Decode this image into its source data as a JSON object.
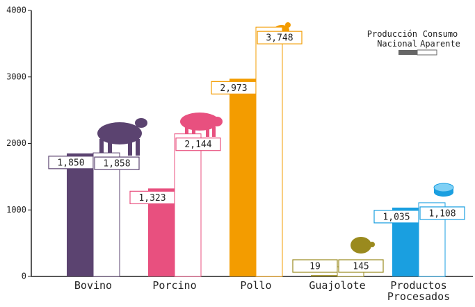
{
  "chart_data": {
    "type": "bar",
    "categories": [
      "Bovino",
      "Porcino",
      "Pollo",
      "Guajolote",
      "Productos Procesados"
    ],
    "category_colors": [
      "#5b4370",
      "#e8507f",
      "#f39c00",
      "#9a8a1e",
      "#1a9fe0"
    ],
    "series": [
      {
        "name": "Producción Nacional",
        "color": "#666666",
        "values": [
          1850,
          1323,
          2973,
          19,
          1035
        ],
        "value_labels": [
          "1,850",
          "1,323",
          "2,973",
          "19",
          "1,035"
        ]
      },
      {
        "name": "Consumo Aparente",
        "color": "#ffffff",
        "values": [
          1858,
          2144,
          3748,
          145,
          1108
        ],
        "value_labels": [
          "1,858",
          "2,144",
          "3,748",
          "145",
          "1,108"
        ]
      }
    ],
    "ylim": [
      0,
      4000
    ],
    "yticks": [
      0,
      1000,
      2000,
      3000,
      4000
    ],
    "grid": false
  }
}
